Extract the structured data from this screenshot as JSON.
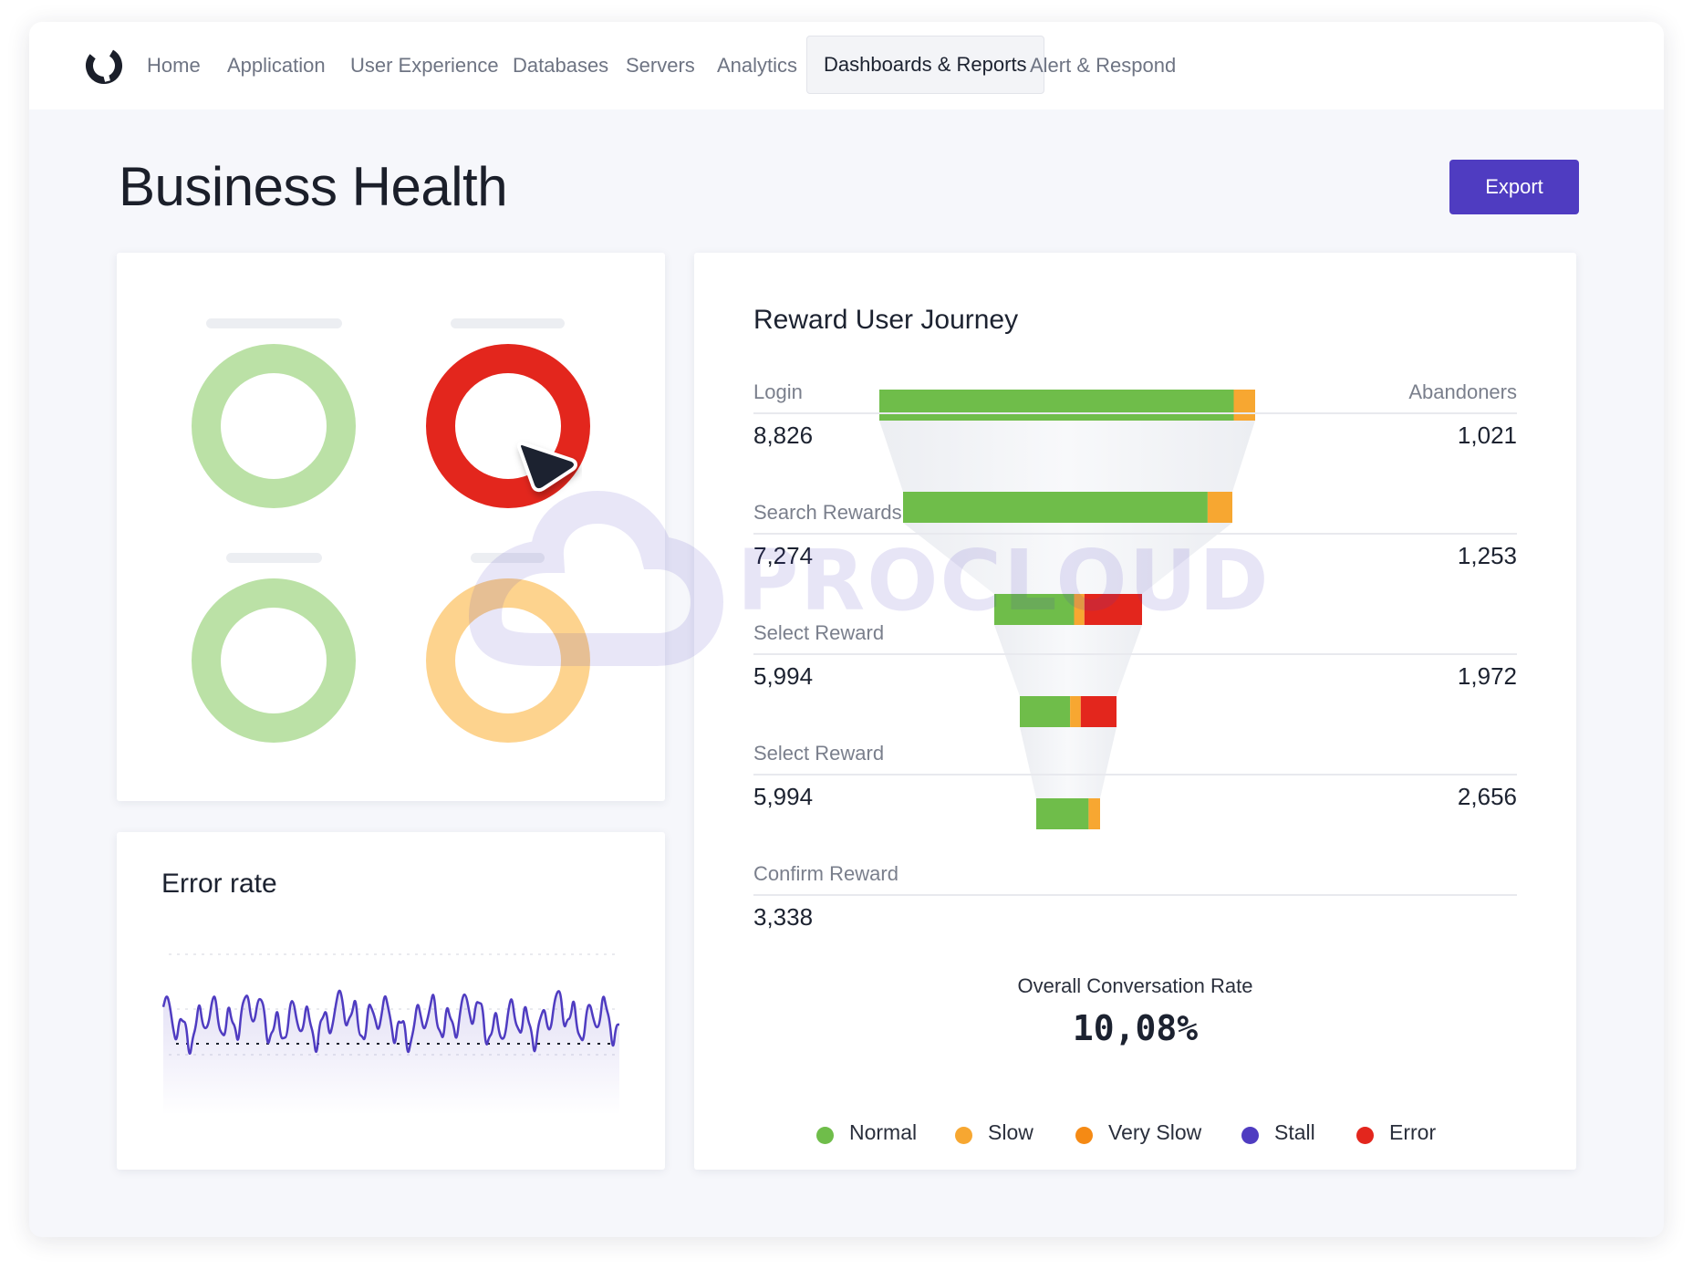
{
  "nav": {
    "items": [
      {
        "label": "Home"
      },
      {
        "label": "Application"
      },
      {
        "label": "User Experience"
      },
      {
        "label": "Databases"
      },
      {
        "label": "Servers"
      },
      {
        "label": "Analytics"
      },
      {
        "label": "Dashboards & Reports",
        "active": true
      },
      {
        "label": "Alert & Respond"
      }
    ]
  },
  "page": {
    "title": "Business Health",
    "export_label": "Export"
  },
  "gauges": [
    {
      "color": "#bbe1a6",
      "status": "normal"
    },
    {
      "color": "#e3261d",
      "status": "error"
    },
    {
      "color": "#bbe1a6",
      "status": "normal"
    },
    {
      "color": "#fdd38e",
      "status": "slow"
    }
  ],
  "error_rate": {
    "title": "Error rate"
  },
  "funnel": {
    "title": "Reward User Journey",
    "abandoners_label": "Abandoners",
    "stages": [
      {
        "label": "Login",
        "value": "8,826",
        "abandoners": "1,021"
      },
      {
        "label": "Search Rewards",
        "value": "7,274",
        "abandoners": "1,253"
      },
      {
        "label": "Select Reward",
        "value": "5,994",
        "abandoners": "1,972"
      },
      {
        "label": "Select Reward",
        "value": "5,994",
        "abandoners": "2,656"
      },
      {
        "label": "Confirm Reward",
        "value": "3,338",
        "abandoners": ""
      }
    ],
    "overall_label": "Overall Conversation Rate",
    "overall_value": "10,08%"
  },
  "legend": [
    {
      "label": "Normal",
      "color": "#6fbd4a"
    },
    {
      "label": "Slow",
      "color": "#f7a731"
    },
    {
      "label": "Very Slow",
      "color": "#f58a14"
    },
    {
      "label": "Stall",
      "color": "#4f3cc1"
    },
    {
      "label": "Error",
      "color": "#e3261d"
    }
  ],
  "colors": {
    "accent": "#4f3cc1",
    "normal": "#6fbd4a",
    "slow": "#f7a731",
    "error": "#e3261d",
    "line": "#4f3cc1"
  },
  "watermark": "PROCLOUD"
}
